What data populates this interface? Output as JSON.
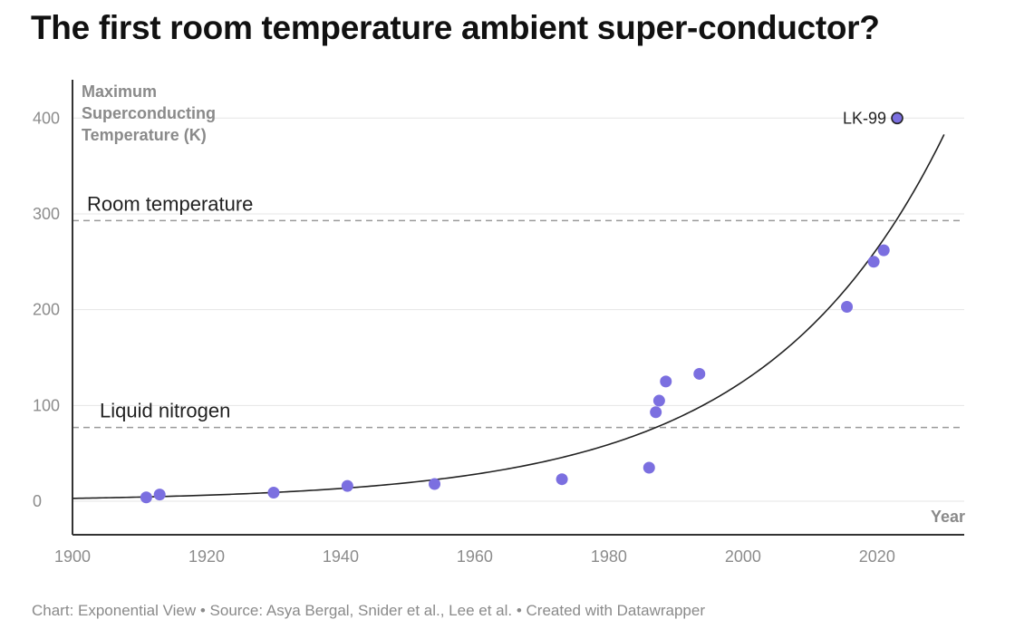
{
  "page": {
    "title": "The first room temperature ambient super-conductor?",
    "footer": "Chart: Exponential View • Source: Asya Bergal, Snider et al., Lee et al. • Created with Datawrapper"
  },
  "chart_data": {
    "type": "scatter",
    "title": "The first room temperature ambient super-conductor?",
    "xlabel": "Year",
    "ylabel": [
      "Maximum",
      "Superconducting",
      "Temperature (K)"
    ],
    "xlim": [
      1900,
      2033
    ],
    "ylim": [
      -35,
      440
    ],
    "x_ticks": [
      1900,
      1920,
      1940,
      1960,
      1980,
      2000,
      2020
    ],
    "y_ticks": [
      0,
      100,
      200,
      300,
      400
    ],
    "grid": true,
    "points": [
      {
        "x": 1911,
        "y": 4
      },
      {
        "x": 1913,
        "y": 7
      },
      {
        "x": 1930,
        "y": 9
      },
      {
        "x": 1941,
        "y": 16
      },
      {
        "x": 1954,
        "y": 18
      },
      {
        "x": 1973,
        "y": 23
      },
      {
        "x": 1986,
        "y": 35
      },
      {
        "x": 1987,
        "y": 93
      },
      {
        "x": 1987.5,
        "y": 105
      },
      {
        "x": 1988.5,
        "y": 125
      },
      {
        "x": 1993.5,
        "y": 133
      },
      {
        "x": 2015.5,
        "y": 203
      },
      {
        "x": 2019.5,
        "y": 250
      },
      {
        "x": 2021,
        "y": 262
      }
    ],
    "highlight_point": {
      "x": 2023,
      "y": 400,
      "label": "LK-99",
      "color": "#7b6fe0"
    },
    "trend": {
      "type": "exponential",
      "a": 3.0,
      "b": 0.0373,
      "x0": 1900,
      "x_end": 2030,
      "color": "#222222"
    },
    "reference_lines": [
      {
        "label": "Room temperature",
        "y": 293
      },
      {
        "label": "Liquid nitrogen",
        "y": 77
      }
    ],
    "colors": {
      "points": "#7b6fe0",
      "grid": "#e6e6e6",
      "reference": "#9a9a9a",
      "axis": "#333333"
    }
  }
}
